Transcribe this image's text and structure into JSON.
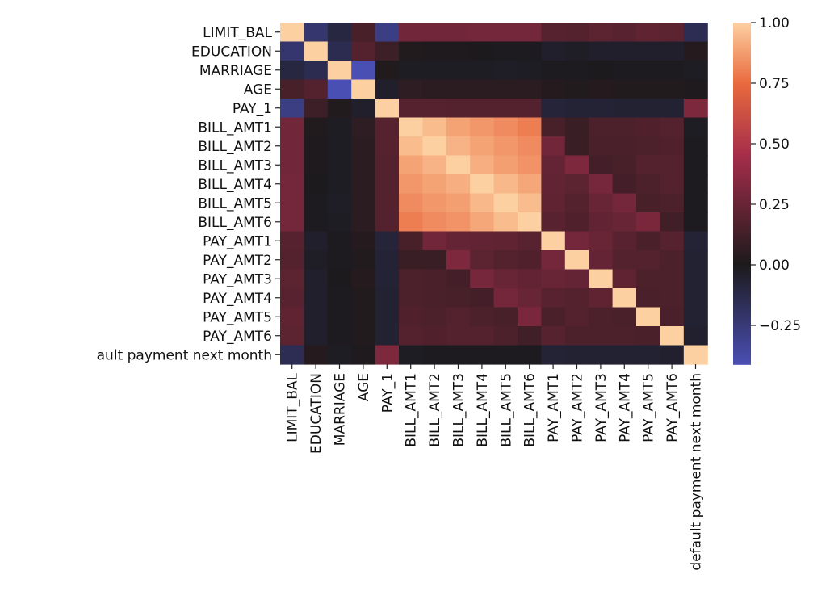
{
  "chart_data": {
    "type": "heatmap",
    "title": "",
    "xlabel": "",
    "ylabel": "",
    "row_labels": [
      "LIMIT_BAL",
      "EDUCATION",
      "MARRIAGE",
      "AGE",
      "PAY_1",
      "BILL_AMT1",
      "BILL_AMT2",
      "BILL_AMT3",
      "BILL_AMT4",
      "BILL_AMT5",
      "BILL_AMT6",
      "PAY_AMT1",
      "PAY_AMT2",
      "PAY_AMT3",
      "PAY_AMT4",
      "PAY_AMT5",
      "PAY_AMT6",
      "default payment next month"
    ],
    "col_labels": [
      "LIMIT_BAL",
      "EDUCATION",
      "MARRIAGE",
      "AGE",
      "PAY_1",
      "BILL_AMT1",
      "BILL_AMT2",
      "BILL_AMT3",
      "BILL_AMT4",
      "BILL_AMT5",
      "BILL_AMT6",
      "PAY_AMT1",
      "PAY_AMT2",
      "PAY_AMT3",
      "PAY_AMT4",
      "PAY_AMT5",
      "PAY_AMT6",
      "default payment next month"
    ],
    "row_label_display_last": "ault payment next month",
    "values": [
      [
        1.0,
        -0.22,
        -0.1,
        0.14,
        -0.28,
        0.28,
        0.28,
        0.28,
        0.29,
        0.29,
        0.29,
        0.19,
        0.18,
        0.21,
        0.2,
        0.22,
        0.21,
        -0.15
      ],
      [
        -0.22,
        1.0,
        -0.14,
        0.18,
        0.11,
        0.02,
        0.01,
        0.01,
        0.0,
        -0.01,
        -0.01,
        -0.04,
        -0.03,
        -0.04,
        -0.04,
        -0.04,
        -0.04,
        0.03
      ],
      [
        -0.1,
        -0.14,
        1.0,
        -0.41,
        0.02,
        -0.02,
        -0.02,
        -0.02,
        -0.02,
        -0.03,
        -0.02,
        -0.01,
        -0.01,
        0.0,
        -0.01,
        -0.01,
        -0.01,
        -0.02
      ],
      [
        0.14,
        0.18,
        -0.41,
        1.0,
        -0.04,
        0.06,
        0.05,
        0.05,
        0.05,
        0.05,
        0.05,
        0.03,
        0.02,
        0.03,
        0.02,
        0.02,
        0.02,
        0.01
      ],
      [
        -0.28,
        0.11,
        0.02,
        -0.04,
        1.0,
        0.19,
        0.19,
        0.18,
        0.18,
        0.18,
        0.18,
        -0.08,
        -0.07,
        -0.07,
        -0.06,
        -0.06,
        -0.06,
        0.32
      ],
      [
        0.28,
        0.02,
        -0.02,
        0.06,
        0.19,
        1.0,
        0.95,
        0.89,
        0.86,
        0.83,
        0.8,
        0.14,
        0.1,
        0.16,
        0.16,
        0.17,
        0.18,
        -0.02
      ],
      [
        0.28,
        0.01,
        -0.02,
        0.05,
        0.19,
        0.95,
        1.0,
        0.93,
        0.89,
        0.86,
        0.83,
        0.28,
        0.1,
        0.15,
        0.15,
        0.16,
        0.17,
        -0.01
      ],
      [
        0.28,
        0.01,
        -0.02,
        0.05,
        0.18,
        0.89,
        0.93,
        1.0,
        0.92,
        0.88,
        0.85,
        0.24,
        0.32,
        0.13,
        0.14,
        0.18,
        0.18,
        -0.01
      ],
      [
        0.29,
        0.0,
        -0.02,
        0.05,
        0.18,
        0.86,
        0.89,
        0.92,
        1.0,
        0.94,
        0.9,
        0.23,
        0.21,
        0.3,
        0.13,
        0.16,
        0.18,
        -0.01
      ],
      [
        0.29,
        -0.01,
        -0.03,
        0.05,
        0.18,
        0.83,
        0.86,
        0.88,
        0.94,
        1.0,
        0.95,
        0.22,
        0.18,
        0.25,
        0.29,
        0.14,
        0.16,
        -0.01
      ],
      [
        0.29,
        -0.01,
        -0.02,
        0.05,
        0.18,
        0.8,
        0.83,
        0.85,
        0.9,
        0.95,
        1.0,
        0.2,
        0.17,
        0.23,
        0.25,
        0.31,
        0.12,
        -0.01
      ],
      [
        0.19,
        -0.04,
        -0.01,
        0.03,
        -0.08,
        0.14,
        0.28,
        0.24,
        0.23,
        0.22,
        0.2,
        1.0,
        0.29,
        0.25,
        0.2,
        0.15,
        0.19,
        -0.07
      ],
      [
        0.18,
        -0.03,
        -0.01,
        0.02,
        -0.07,
        0.1,
        0.1,
        0.32,
        0.21,
        0.18,
        0.17,
        0.29,
        1.0,
        0.24,
        0.18,
        0.18,
        0.16,
        -0.06
      ],
      [
        0.21,
        -0.04,
        0.0,
        0.03,
        -0.07,
        0.16,
        0.15,
        0.13,
        0.3,
        0.25,
        0.23,
        0.25,
        0.24,
        1.0,
        0.22,
        0.16,
        0.16,
        -0.06
      ],
      [
        0.2,
        -0.04,
        -0.01,
        0.02,
        -0.06,
        0.16,
        0.15,
        0.14,
        0.13,
        0.29,
        0.25,
        0.2,
        0.18,
        0.22,
        1.0,
        0.15,
        0.16,
        -0.06
      ],
      [
        0.22,
        -0.04,
        -0.01,
        0.02,
        -0.06,
        0.17,
        0.16,
        0.18,
        0.16,
        0.14,
        0.31,
        0.15,
        0.18,
        0.16,
        0.15,
        1.0,
        0.15,
        -0.06
      ],
      [
        0.21,
        -0.04,
        -0.01,
        0.02,
        -0.06,
        0.18,
        0.17,
        0.18,
        0.18,
        0.16,
        0.12,
        0.19,
        0.16,
        0.16,
        0.16,
        0.15,
        1.0,
        -0.05
      ],
      [
        -0.15,
        0.03,
        -0.02,
        0.01,
        0.32,
        -0.02,
        -0.01,
        -0.01,
        -0.01,
        -0.01,
        -0.01,
        -0.07,
        -0.06,
        -0.06,
        -0.06,
        -0.06,
        -0.05,
        1.0
      ]
    ],
    "colorbar": {
      "vmin": -0.41,
      "vmax": 1.0,
      "center": 0.0,
      "ticks": [
        1.0,
        0.75,
        0.5,
        0.25,
        0.0,
        -0.25
      ],
      "tick_labels": [
        "1.00",
        "0.75",
        "0.50",
        "0.25",
        "0.00",
        "−0.25"
      ]
    },
    "colormap": {
      "low": "#4a4fb3",
      "center": "#1c1a1c",
      "mid_high": "#a52d4a",
      "high_mid": "#e96a3e",
      "high": "#fdd0a1"
    },
    "grid": false,
    "legend": "colorbar-right"
  }
}
